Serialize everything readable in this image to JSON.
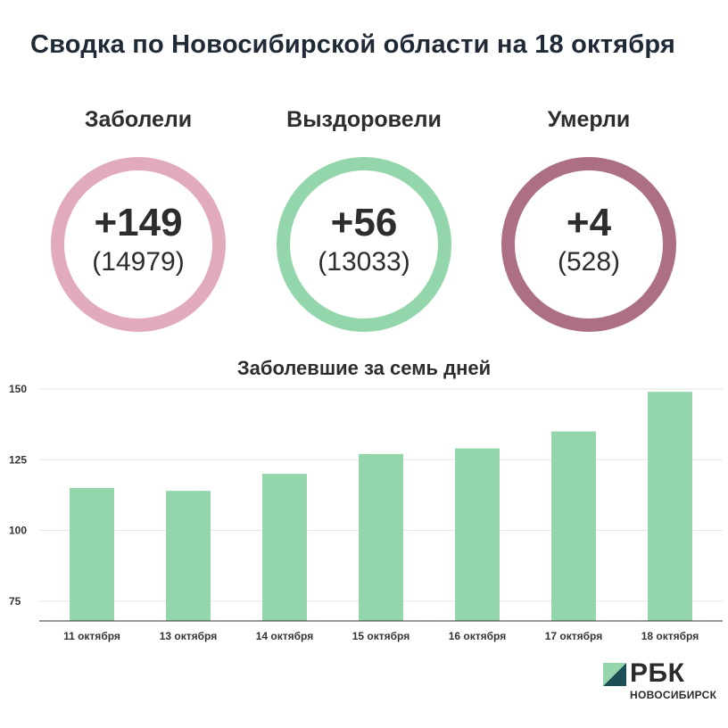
{
  "title": "Сводка по Новосибирской области на 18 октября",
  "stats": [
    {
      "label": "Заболели",
      "delta": "+149",
      "total": "(14979)",
      "color": "#e2abbb"
    },
    {
      "label": "Выздоровели",
      "delta": "+56",
      "total": "(13033)",
      "color": "#94d6ab"
    },
    {
      "label": "Умерли",
      "delta": "+4",
      "total": "(528)",
      "color": "#ad6f85"
    }
  ],
  "chart_data": {
    "type": "bar",
    "title": "Заболевшие за семь дней",
    "categories": [
      "11 октября",
      "13 октября",
      "14 октября",
      "15 октября",
      "16 октября",
      "17 октября",
      "18 октября"
    ],
    "values": [
      115,
      114,
      120,
      127,
      129,
      135,
      149
    ],
    "ylim": [
      68,
      150
    ],
    "yticks": [
      75,
      100,
      125,
      150
    ],
    "grid": true,
    "bar_color": "#94d6ab",
    "xlabel": "",
    "ylabel": ""
  },
  "logo": {
    "name": "РБК",
    "subtitle": "НОВОСИБИРСК",
    "colors": [
      "#1b4f56",
      "#94d6ab"
    ]
  }
}
